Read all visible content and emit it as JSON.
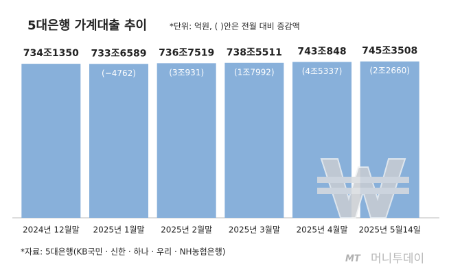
{
  "chart_data": {
    "type": "bar",
    "title": "5대은행 가계대출 추이",
    "subtitle": "*단위: 억원, ( )안은 전월 대비 증감액",
    "categories": [
      "2024년 12월말",
      "2025년 1월말",
      "2025년 2월말",
      "2025년 3월말",
      "2025년 4월말",
      "2025년 5월14일"
    ],
    "values": [
      7341350,
      7336589,
      7367519,
      7385511,
      7430848,
      7453508
    ],
    "value_labels": [
      "734조1350",
      "733조6589",
      "736조7519",
      "738조5511",
      "743조848",
      "745조3508"
    ],
    "change_labels": [
      null,
      "(−4762)",
      "(3조931)",
      "(1조7992)",
      "(4조5337)",
      "(2조2660)"
    ],
    "color": "#88b0da",
    "ylim": [
      0,
      7900000
    ],
    "source": "*자료: 5대은행(KB국민 · 신한 · 하나 · 우리 · NH농협은행)",
    "watermark": {
      "logo": "MT",
      "name": "머니투데이"
    }
  }
}
